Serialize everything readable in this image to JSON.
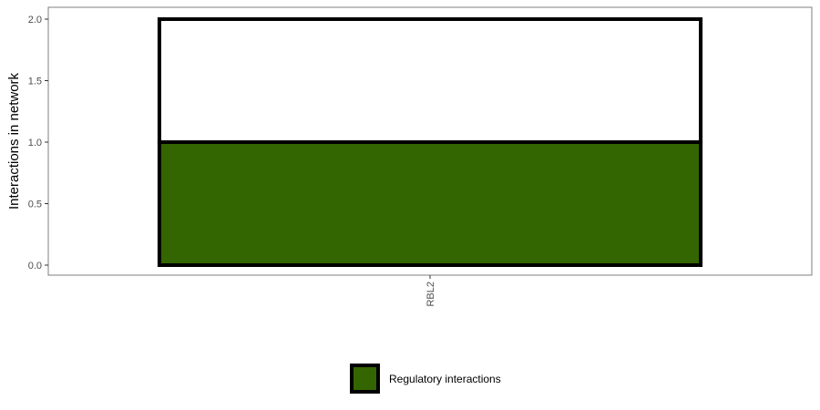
{
  "chart_data": {
    "type": "bar",
    "stacked": true,
    "categories": [
      "RBL2"
    ],
    "series": [
      {
        "name": "Regulatory interactions",
        "values": [
          1
        ],
        "fill": "#336600"
      },
      {
        "name": "",
        "values": [
          1
        ],
        "fill": "#ffffff"
      }
    ],
    "title": "",
    "xlabel": "",
    "ylabel": "Interactions in network",
    "ylim": [
      0,
      2
    ],
    "yticks": [
      "0.0",
      "0.5",
      "1.0",
      "1.5",
      "2.0"
    ],
    "grid": false,
    "legend": {
      "position": "bottom",
      "entries": [
        "Regulatory interactions"
      ]
    }
  }
}
